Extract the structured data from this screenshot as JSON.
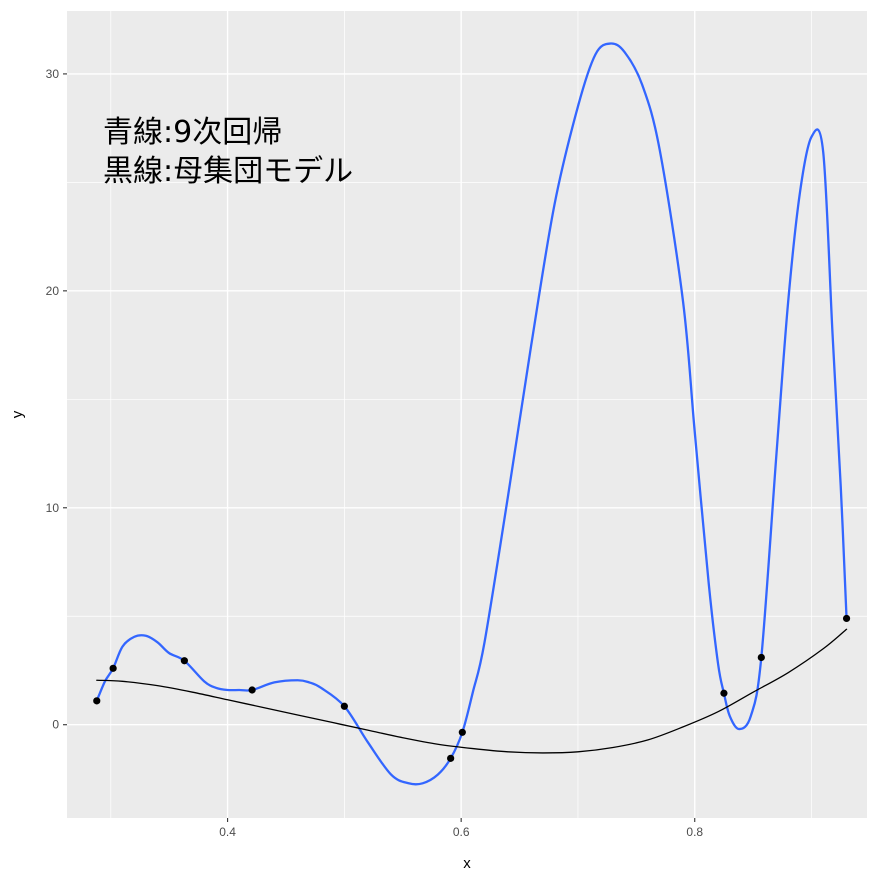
{
  "chart_data": {
    "type": "scatter",
    "xlabel": "x",
    "ylabel": "y",
    "xlim": [
      0.2625,
      0.9475
    ],
    "ylim": [
      -4.3,
      32.9
    ],
    "x_ticks": [
      0.4,
      0.6,
      0.8
    ],
    "x_tick_labels": [
      "0.4",
      "0.6",
      "0.8"
    ],
    "y_ticks": [
      0,
      10,
      20,
      30
    ],
    "y_tick_labels": [
      "0",
      "10",
      "20",
      "30"
    ],
    "grid": true,
    "panel_background": "#ebebeb",
    "grid_color": "#ffffff",
    "annotations": [
      "青線:9次回帰",
      "黒線:母集団モデル"
    ],
    "points": {
      "color": "#000000",
      "x": [
        0.288,
        0.302,
        0.363,
        0.421,
        0.5,
        0.591,
        0.601,
        0.825,
        0.857,
        0.93
      ],
      "y": [
        1.1,
        2.6,
        2.95,
        1.6,
        0.85,
        -1.55,
        -0.35,
        1.45,
        3.1,
        4.9
      ]
    },
    "series": [
      {
        "color": "#3366ff",
        "x": [
          0.288,
          0.295,
          0.302,
          0.31,
          0.32,
          0.33,
          0.34,
          0.35,
          0.363,
          0.38,
          0.39,
          0.4,
          0.41,
          0.421,
          0.44,
          0.46,
          0.47,
          0.48,
          0.5,
          0.52,
          0.54,
          0.555,
          0.567,
          0.58,
          0.591,
          0.601,
          0.61,
          0.62,
          0.64,
          0.66,
          0.68,
          0.7,
          0.715,
          0.728,
          0.74,
          0.755,
          0.77,
          0.79,
          0.8,
          0.812,
          0.82,
          0.825,
          0.83,
          0.838,
          0.848,
          0.857,
          0.87,
          0.88,
          0.89,
          0.9,
          0.91,
          0.918,
          0.925,
          0.93
        ],
        "y": [
          1.1,
          2.0,
          2.6,
          3.6,
          4.05,
          4.1,
          3.8,
          3.3,
          2.95,
          2.0,
          1.7,
          1.6,
          1.6,
          1.6,
          1.95,
          2.05,
          1.95,
          1.7,
          0.85,
          -0.8,
          -2.3,
          -2.7,
          -2.7,
          -2.3,
          -1.55,
          -0.35,
          1.5,
          3.8,
          10.5,
          17.5,
          24.0,
          28.5,
          30.9,
          31.4,
          31.0,
          29.5,
          26.5,
          19.5,
          13.5,
          6.5,
          2.8,
          1.45,
          0.4,
          -0.2,
          0.4,
          3.1,
          12.5,
          19.5,
          24.5,
          27.1,
          26.4,
          18.0,
          11.0,
          4.9
        ]
      },
      {
        "color": "#000000",
        "x": [
          0.288,
          0.31,
          0.34,
          0.37,
          0.4,
          0.43,
          0.46,
          0.49,
          0.52,
          0.55,
          0.58,
          0.61,
          0.64,
          0.67,
          0.7,
          0.73,
          0.76,
          0.79,
          0.82,
          0.85,
          0.88,
          0.91,
          0.93
        ],
        "y": [
          2.05,
          2.0,
          1.8,
          1.5,
          1.15,
          0.8,
          0.45,
          0.1,
          -0.25,
          -0.6,
          -0.9,
          -1.1,
          -1.25,
          -1.3,
          -1.25,
          -1.05,
          -0.7,
          -0.1,
          0.6,
          1.5,
          2.4,
          3.5,
          4.4
        ]
      }
    ]
  }
}
